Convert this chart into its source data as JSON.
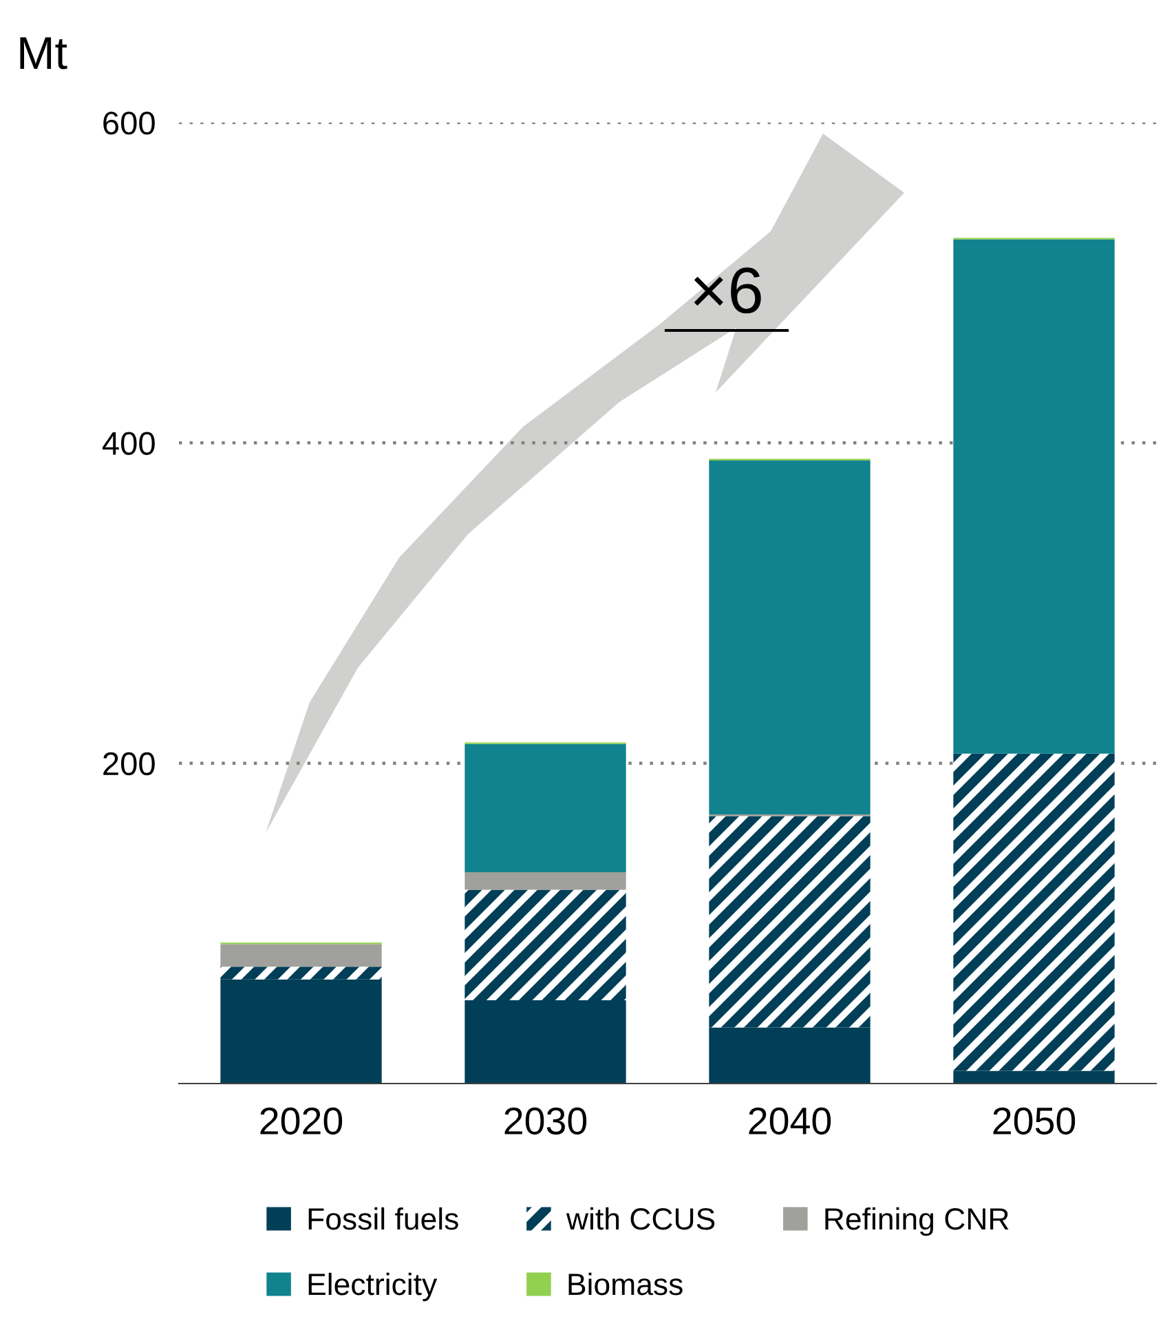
{
  "chart_data": {
    "type": "bar",
    "stacked": true,
    "ylabel": "Mt",
    "categories": [
      "2020",
      "2030",
      "2040",
      "2050"
    ],
    "series": [
      {
        "name": "Fossil fuels",
        "color": "#003f57",
        "values": [
          65,
          52,
          35,
          8
        ]
      },
      {
        "name": "with CCUS",
        "color": "#003f57",
        "values": [
          8,
          69,
          132,
          198
        ]
      },
      {
        "name": "Refining CNR",
        "color": "#a0a09c",
        "values": [
          14,
          11,
          1,
          0
        ]
      },
      {
        "name": "Electricity",
        "color": "#10838e",
        "values": [
          0,
          80,
          221,
          321
        ]
      },
      {
        "name": "Biomass",
        "color": "#92d050",
        "values": [
          1,
          1,
          1,
          1
        ]
      }
    ],
    "ylim": [
      0,
      600
    ],
    "yticks": [
      200,
      400,
      600
    ],
    "grid": "y",
    "legend": "bottom",
    "annotations": [
      "×6"
    ]
  }
}
